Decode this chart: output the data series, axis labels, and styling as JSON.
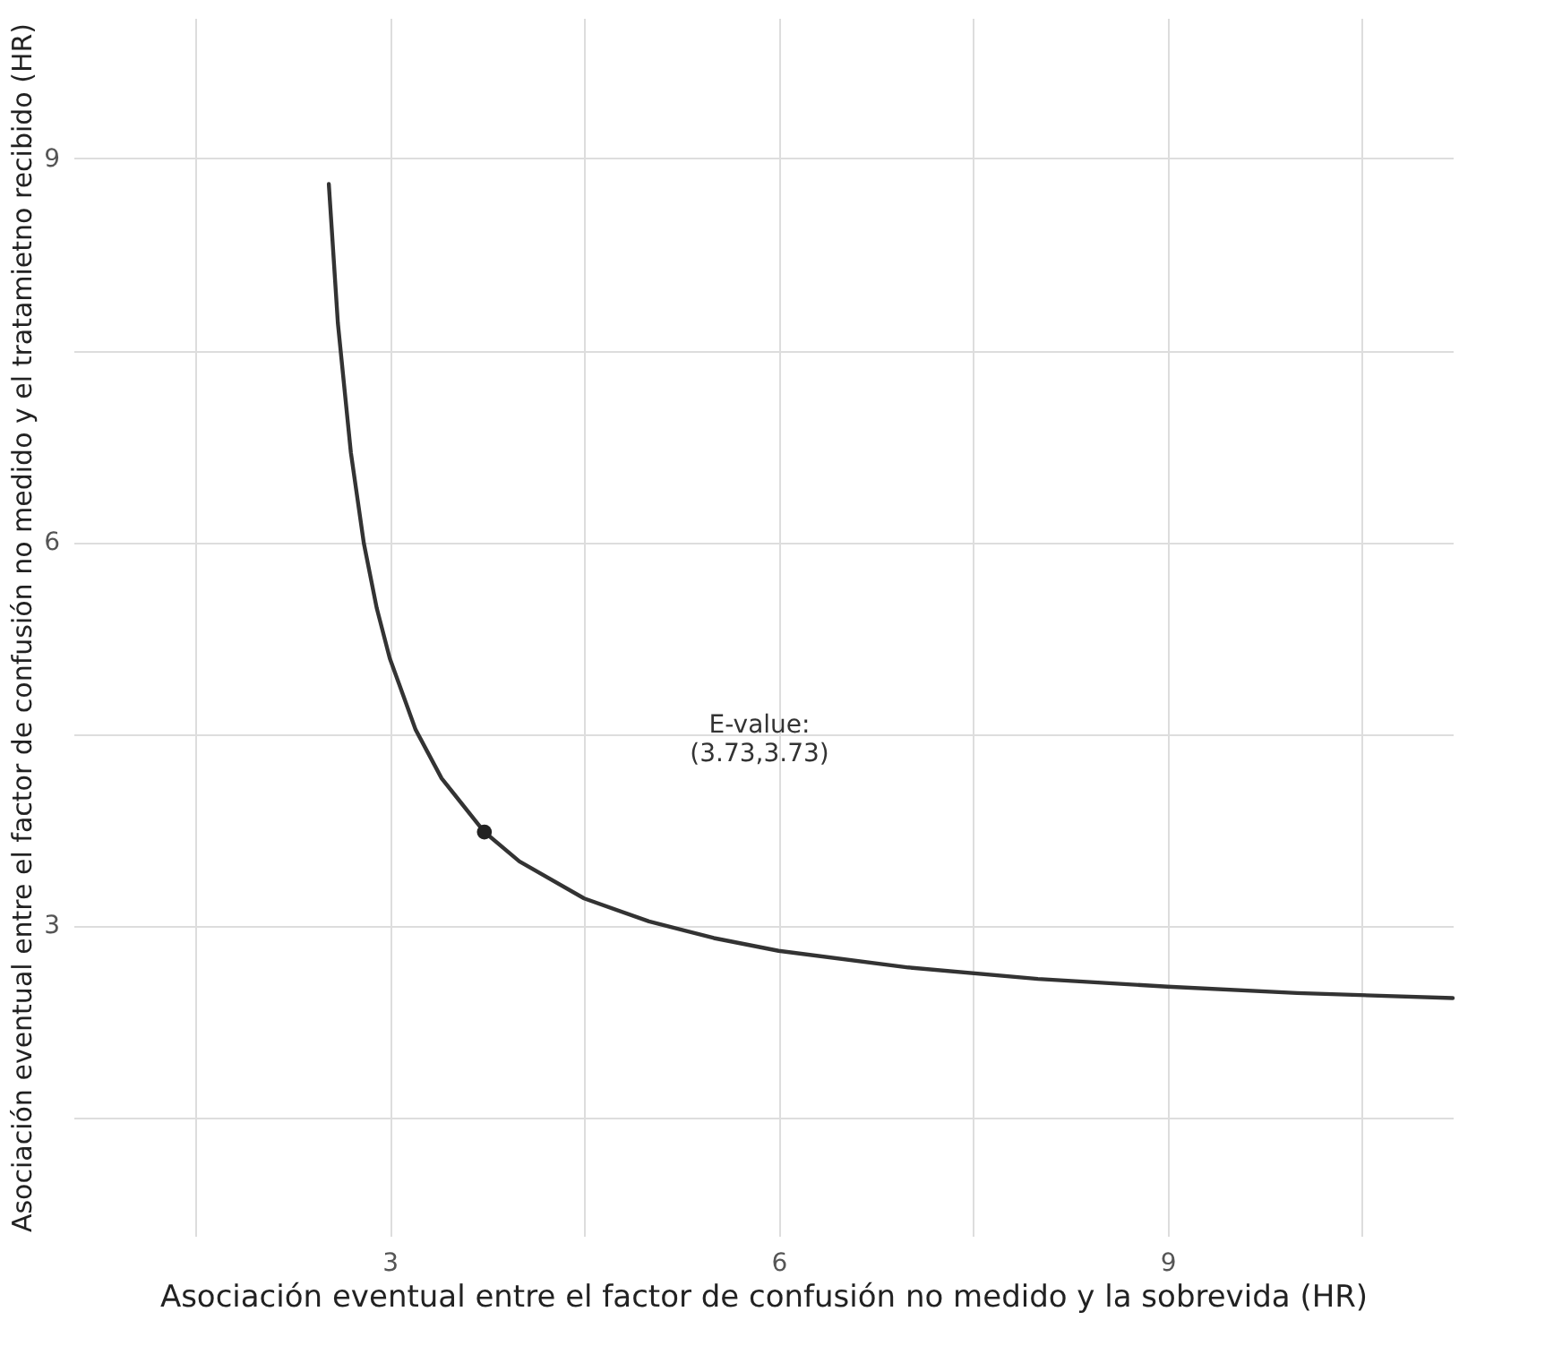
{
  "chart_data": {
    "type": "line",
    "xlabel": "Asociación eventual entre el factor de confusión no medido y la sobrevida (HR)",
    "ylabel": "Asociación eventual entre el factor de confusión no medido y el tratamietno recibido (HR)",
    "series": [
      {
        "color": "#333333",
        "x": [
          2.53,
          2.6,
          2.7,
          2.8,
          2.9,
          3.0,
          3.2,
          3.4,
          3.73,
          4.0,
          4.5,
          5.0,
          5.5,
          6.0,
          7.0,
          8.0,
          9.0,
          10.0,
          11.2
        ],
        "values": [
          8.8,
          7.71,
          6.7,
          5.99,
          5.48,
          5.09,
          4.53,
          4.15,
          3.73,
          3.5,
          3.21,
          3.03,
          2.9,
          2.8,
          2.67,
          2.58,
          2.52,
          2.47,
          2.43
        ]
      },
      {
        "type": "scatter",
        "marker": "circle",
        "color": "#222222",
        "x": [
          3.73
        ],
        "values": [
          3.73
        ]
      }
    ],
    "annotations": [
      "E-value:\n(3.73,3.73)"
    ],
    "xlim": [
      0.56,
      11.2
    ],
    "ylim": [
      0.57,
      10.1
    ],
    "xticks": [
      {
        "value": 1.5,
        "label": null
      },
      3,
      {
        "value": 4.5,
        "label": null
      },
      6,
      {
        "value": 7.5,
        "label": null
      },
      9,
      {
        "value": 10.5,
        "label": null
      }
    ],
    "yticks": [
      {
        "value": 1.5,
        "label": null
      },
      3,
      {
        "value": 4.5,
        "label": null
      },
      6,
      {
        "value": 7.5,
        "label": null
      },
      9
    ],
    "grid": true,
    "line_style": "solid"
  }
}
